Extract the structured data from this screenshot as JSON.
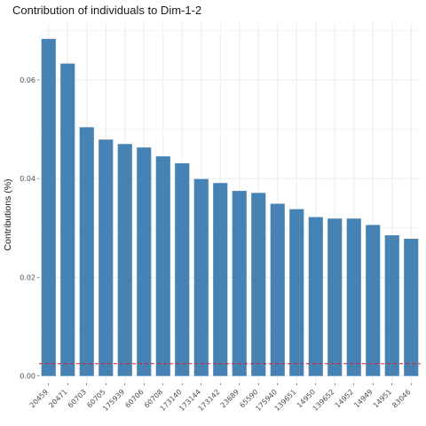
{
  "chart_data": {
    "type": "bar",
    "title": "Contribution of individuals to Dim-1-2",
    "xlabel": "",
    "ylabel": "Contributions (%)",
    "categories": [
      "20459",
      "20471",
      "60703",
      "60705",
      "175939",
      "60706",
      "60708",
      "173140",
      "173144",
      "173142",
      "23689",
      "65590",
      "175940",
      "139651",
      "14950",
      "139652",
      "14952",
      "14949",
      "14951",
      "83046"
    ],
    "values": [
      0.0683,
      0.0633,
      0.0504,
      0.0479,
      0.047,
      0.0463,
      0.0445,
      0.0431,
      0.0399,
      0.0391,
      0.0375,
      0.0371,
      0.0349,
      0.0338,
      0.0322,
      0.0319,
      0.0319,
      0.0306,
      0.0285,
      0.0278
    ],
    "reference_line": 0.0025,
    "yticks": [
      "0.00",
      "0.02",
      "0.04",
      "0.06"
    ],
    "ylim": [
      -0.0015,
      0.0715
    ],
    "grid": true,
    "legend": "none",
    "colors": {
      "bar": "#4682B4",
      "reference": "#E31A1C",
      "grid": "#EBEBEB"
    }
  }
}
